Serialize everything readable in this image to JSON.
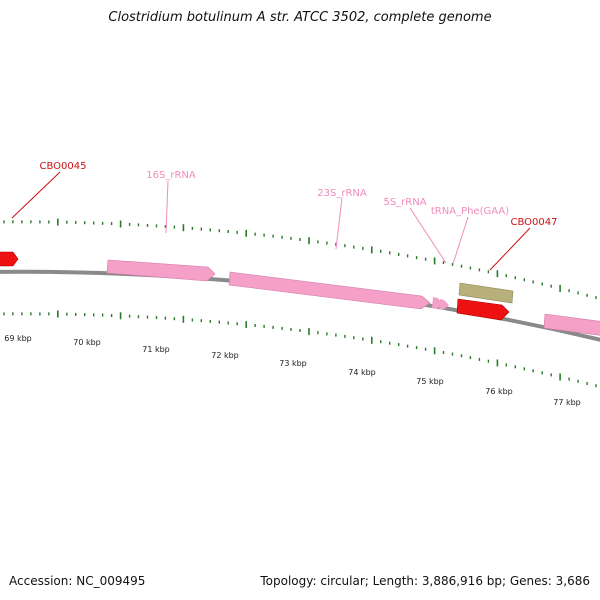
{
  "title": "Clostridium botulinum A str. ATCC 3502, complete genome",
  "footer": {
    "accession": "Accession: NC_009495",
    "summary": "Topology: circular; Length: 3,886,916 bp; Genes: 3,686"
  },
  "colors": {
    "cds": "#ee1111",
    "cds_label": "#cc1111",
    "rrna": "#f4a0c8",
    "rrna_label": "#f08cbc",
    "trna": "#b8b07a",
    "backbone": "#8a8a8a",
    "tick": "#2a7a2a"
  },
  "features": [
    {
      "name": "CBO0045",
      "type": "CDS",
      "label": "CBO0045"
    },
    {
      "name": "16S_rRNA",
      "type": "rRNA",
      "label": "16S_rRNA"
    },
    {
      "name": "23S_rRNA",
      "type": "rRNA",
      "label": "23S_rRNA"
    },
    {
      "name": "5S_rRNA",
      "type": "rRNA",
      "label": "5S_rRNA"
    },
    {
      "name": "tRNA_Phe(GAA)",
      "type": "tRNA",
      "label": "tRNA_Phe(GAA)"
    },
    {
      "name": "CBO0047",
      "type": "CDS",
      "label": "CBO0047"
    }
  ],
  "scale_labels": [
    "69 kbp",
    "70 kbp",
    "71 kbp",
    "72 kbp",
    "73 kbp",
    "74 kbp",
    "75 kbp",
    "76 kbp",
    "77 kbp"
  ]
}
